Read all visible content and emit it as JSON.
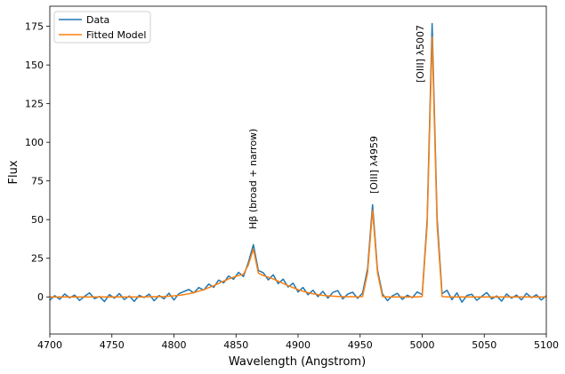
{
  "chart_data": {
    "type": "line",
    "xlabel": "Wavelength (Angstrom)",
    "ylabel": "Flux",
    "xlim": [
      4700,
      5100
    ],
    "ylim": [
      -24,
      188
    ],
    "xticks": [
      4700,
      4750,
      4800,
      4850,
      4900,
      4950,
      5000,
      5050,
      5100
    ],
    "yticks": [
      0,
      25,
      50,
      75,
      100,
      125,
      150,
      175
    ],
    "legend_position": "upper left",
    "annotations": [
      "Hβ (broad + narrow)",
      "[OIII] λ4959",
      "[OIII] λ5007"
    ],
    "x": [
      4700,
      4704,
      4708,
      4712,
      4716,
      4720,
      4724,
      4728,
      4732,
      4736,
      4740,
      4744,
      4748,
      4752,
      4756,
      4760,
      4764,
      4768,
      4772,
      4776,
      4780,
      4784,
      4788,
      4792,
      4796,
      4800,
      4804,
      4808,
      4812,
      4816,
      4820,
      4824,
      4828,
      4832,
      4836,
      4840,
      4844,
      4848,
      4852,
      4856,
      4860,
      4864,
      4868,
      4872,
      4876,
      4880,
      4884,
      4888,
      4892,
      4896,
      4900,
      4904,
      4908,
      4912,
      4916,
      4920,
      4924,
      4928,
      4932,
      4936,
      4940,
      4944,
      4948,
      4952,
      4956,
      4960,
      4964,
      4968,
      4972,
      4976,
      4980,
      4984,
      4988,
      4992,
      4996,
      5000,
      5004,
      5008,
      5012,
      5016,
      5020,
      5024,
      5028,
      5032,
      5036,
      5040,
      5044,
      5048,
      5052,
      5056,
      5060,
      5064,
      5068,
      5072,
      5076,
      5080,
      5084,
      5088,
      5092,
      5096,
      5100
    ],
    "series": [
      {
        "name": "Data",
        "color": "#1f77b4",
        "values": [
          -2.1,
          0.8,
          -1.5,
          1.9,
          -0.6,
          1.2,
          -2.3,
          0.4,
          2.6,
          -1.1,
          0.3,
          -3.0,
          1.5,
          -0.8,
          2.2,
          -1.7,
          0.6,
          -2.9,
          1.0,
          -0.4,
          1.8,
          -2.5,
          0.9,
          -1.2,
          2.4,
          -2.0,
          2.1,
          3.5,
          4.8,
          2.6,
          6.1,
          4.4,
          8.3,
          6.2,
          10.9,
          9.1,
          13.5,
          11.4,
          15.9,
          13.2,
          22.4,
          33.8,
          17.1,
          15.6,
          11.0,
          14.3,
          8.6,
          11.5,
          6.4,
          8.9,
          3.2,
          6.1,
          1.4,
          4.3,
          0.2,
          3.6,
          -0.8,
          2.9,
          4.1,
          -1.3,
          1.8,
          3.0,
          -0.9,
          2.5,
          18.2,
          59.6,
          17.3,
          1.9,
          -2.4,
          0.7,
          2.3,
          -1.6,
          1.1,
          -0.5,
          3.2,
          1.5,
          49.8,
          176.8,
          51.2,
          2.1,
          4.3,
          -1.8,
          2.6,
          -3.4,
          0.9,
          1.7,
          -2.2,
          0.4,
          2.8,
          -1.3,
          0.6,
          -2.7,
          1.9,
          -0.8,
          1.2,
          -1.9,
          2.3,
          -0.5,
          1.4,
          -2.0,
          0.8
        ]
      },
      {
        "name": "Fitted Model",
        "color": "#ff7f0e",
        "values": [
          0,
          0,
          0,
          0,
          0,
          0,
          0,
          0,
          0,
          0,
          0,
          0,
          0,
          0,
          0,
          0,
          0,
          0,
          0,
          0,
          0.1,
          0.1,
          0.2,
          0.3,
          0.5,
          0.7,
          1.0,
          1.5,
          2.0,
          2.8,
          3.7,
          4.7,
          6.0,
          7.3,
          8.7,
          10.2,
          11.6,
          12.8,
          13.8,
          14.6,
          20.8,
          30.9,
          15.4,
          13.8,
          12.8,
          11.6,
          10.2,
          8.7,
          7.3,
          6.0,
          4.7,
          3.7,
          2.8,
          2.0,
          1.5,
          1.0,
          0.7,
          0.5,
          0.3,
          0.2,
          0.1,
          0.1,
          0,
          0.3,
          15.6,
          56,
          15.6,
          0.3,
          0,
          0,
          0,
          0,
          0,
          0,
          0,
          0.3,
          46.7,
          168,
          46.7,
          0.3,
          0,
          0,
          0,
          0,
          0,
          0,
          0,
          0,
          0,
          0,
          0,
          0,
          0,
          0,
          0,
          0,
          0,
          0,
          0,
          0,
          0
        ]
      }
    ]
  }
}
